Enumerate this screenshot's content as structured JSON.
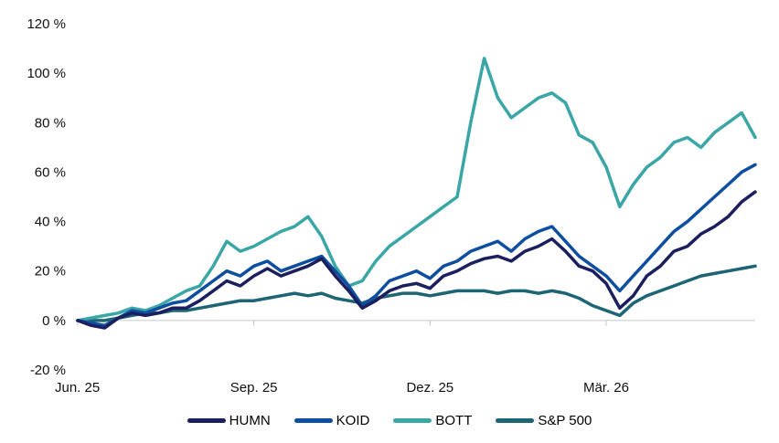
{
  "chart_data": {
    "type": "line",
    "title": "",
    "xlabel": "",
    "ylabel": "",
    "ylim": [
      -20,
      120
    ],
    "y_ticks": [
      -20,
      0,
      20,
      40,
      60,
      80,
      100,
      120
    ],
    "y_tick_labels": [
      "-20 %",
      "0 %",
      "20 %",
      "40 %",
      "60 %",
      "80 %",
      "100 %",
      "120 %"
    ],
    "x_tick_labels": [
      "Jun. 25",
      "Sep. 25",
      "Dez. 25",
      "Mär. 26"
    ],
    "x_tick_positions": [
      0,
      13,
      26,
      39
    ],
    "xlim": [
      0,
      50
    ],
    "grid": false,
    "legend_position": "bottom",
    "x": [
      0,
      1,
      2,
      3,
      4,
      5,
      6,
      7,
      8,
      9,
      10,
      11,
      12,
      13,
      14,
      15,
      16,
      17,
      18,
      19,
      20,
      21,
      22,
      23,
      24,
      25,
      26,
      27,
      28,
      29,
      30,
      31,
      32,
      33,
      34,
      35,
      36,
      37,
      38,
      39,
      40,
      41,
      42,
      43,
      44,
      45,
      46,
      47,
      48,
      49,
      50
    ],
    "series": [
      {
        "name": "HUMN",
        "color": "#1c1f5e",
        "values": [
          0,
          -2,
          -3,
          1,
          3,
          2,
          3,
          5,
          5,
          8,
          12,
          16,
          14,
          18,
          21,
          18,
          20,
          22,
          25,
          18,
          12,
          5,
          8,
          12,
          14,
          15,
          13,
          18,
          20,
          23,
          25,
          26,
          24,
          28,
          30,
          33,
          28,
          22,
          20,
          15,
          5,
          10,
          18,
          22,
          28,
          30,
          35,
          38,
          42,
          48,
          52
        ]
      },
      {
        "name": "KOID",
        "color": "#0d4ea1",
        "values": [
          0,
          -1,
          -2,
          1,
          4,
          3,
          5,
          7,
          8,
          12,
          16,
          20,
          18,
          22,
          24,
          20,
          22,
          24,
          26,
          20,
          14,
          6,
          10,
          16,
          18,
          20,
          17,
          22,
          24,
          28,
          30,
          32,
          28,
          33,
          36,
          38,
          32,
          26,
          22,
          18,
          12,
          18,
          24,
          30,
          36,
          40,
          45,
          50,
          55,
          60,
          63
        ]
      },
      {
        "name": "BOTT",
        "color": "#3aa6a6",
        "values": [
          0,
          1,
          2,
          3,
          5,
          4,
          6,
          9,
          12,
          14,
          22,
          32,
          28,
          30,
          33,
          36,
          38,
          42,
          34,
          22,
          14,
          16,
          24,
          30,
          34,
          38,
          42,
          46,
          50,
          80,
          106,
          90,
          82,
          86,
          90,
          92,
          88,
          75,
          72,
          62,
          46,
          55,
          62,
          66,
          72,
          74,
          70,
          76,
          80,
          84,
          74
        ]
      },
      {
        "name": "S&P 500",
        "color": "#1d6474",
        "values": [
          0,
          0,
          0,
          1,
          2,
          3,
          3,
          4,
          4,
          5,
          6,
          7,
          8,
          8,
          9,
          10,
          11,
          10,
          11,
          9,
          8,
          7,
          9,
          10,
          11,
          11,
          10,
          11,
          12,
          12,
          12,
          11,
          12,
          12,
          11,
          12,
          11,
          9,
          6,
          4,
          2,
          7,
          10,
          12,
          14,
          16,
          18,
          19,
          20,
          21,
          22
        ]
      }
    ]
  }
}
